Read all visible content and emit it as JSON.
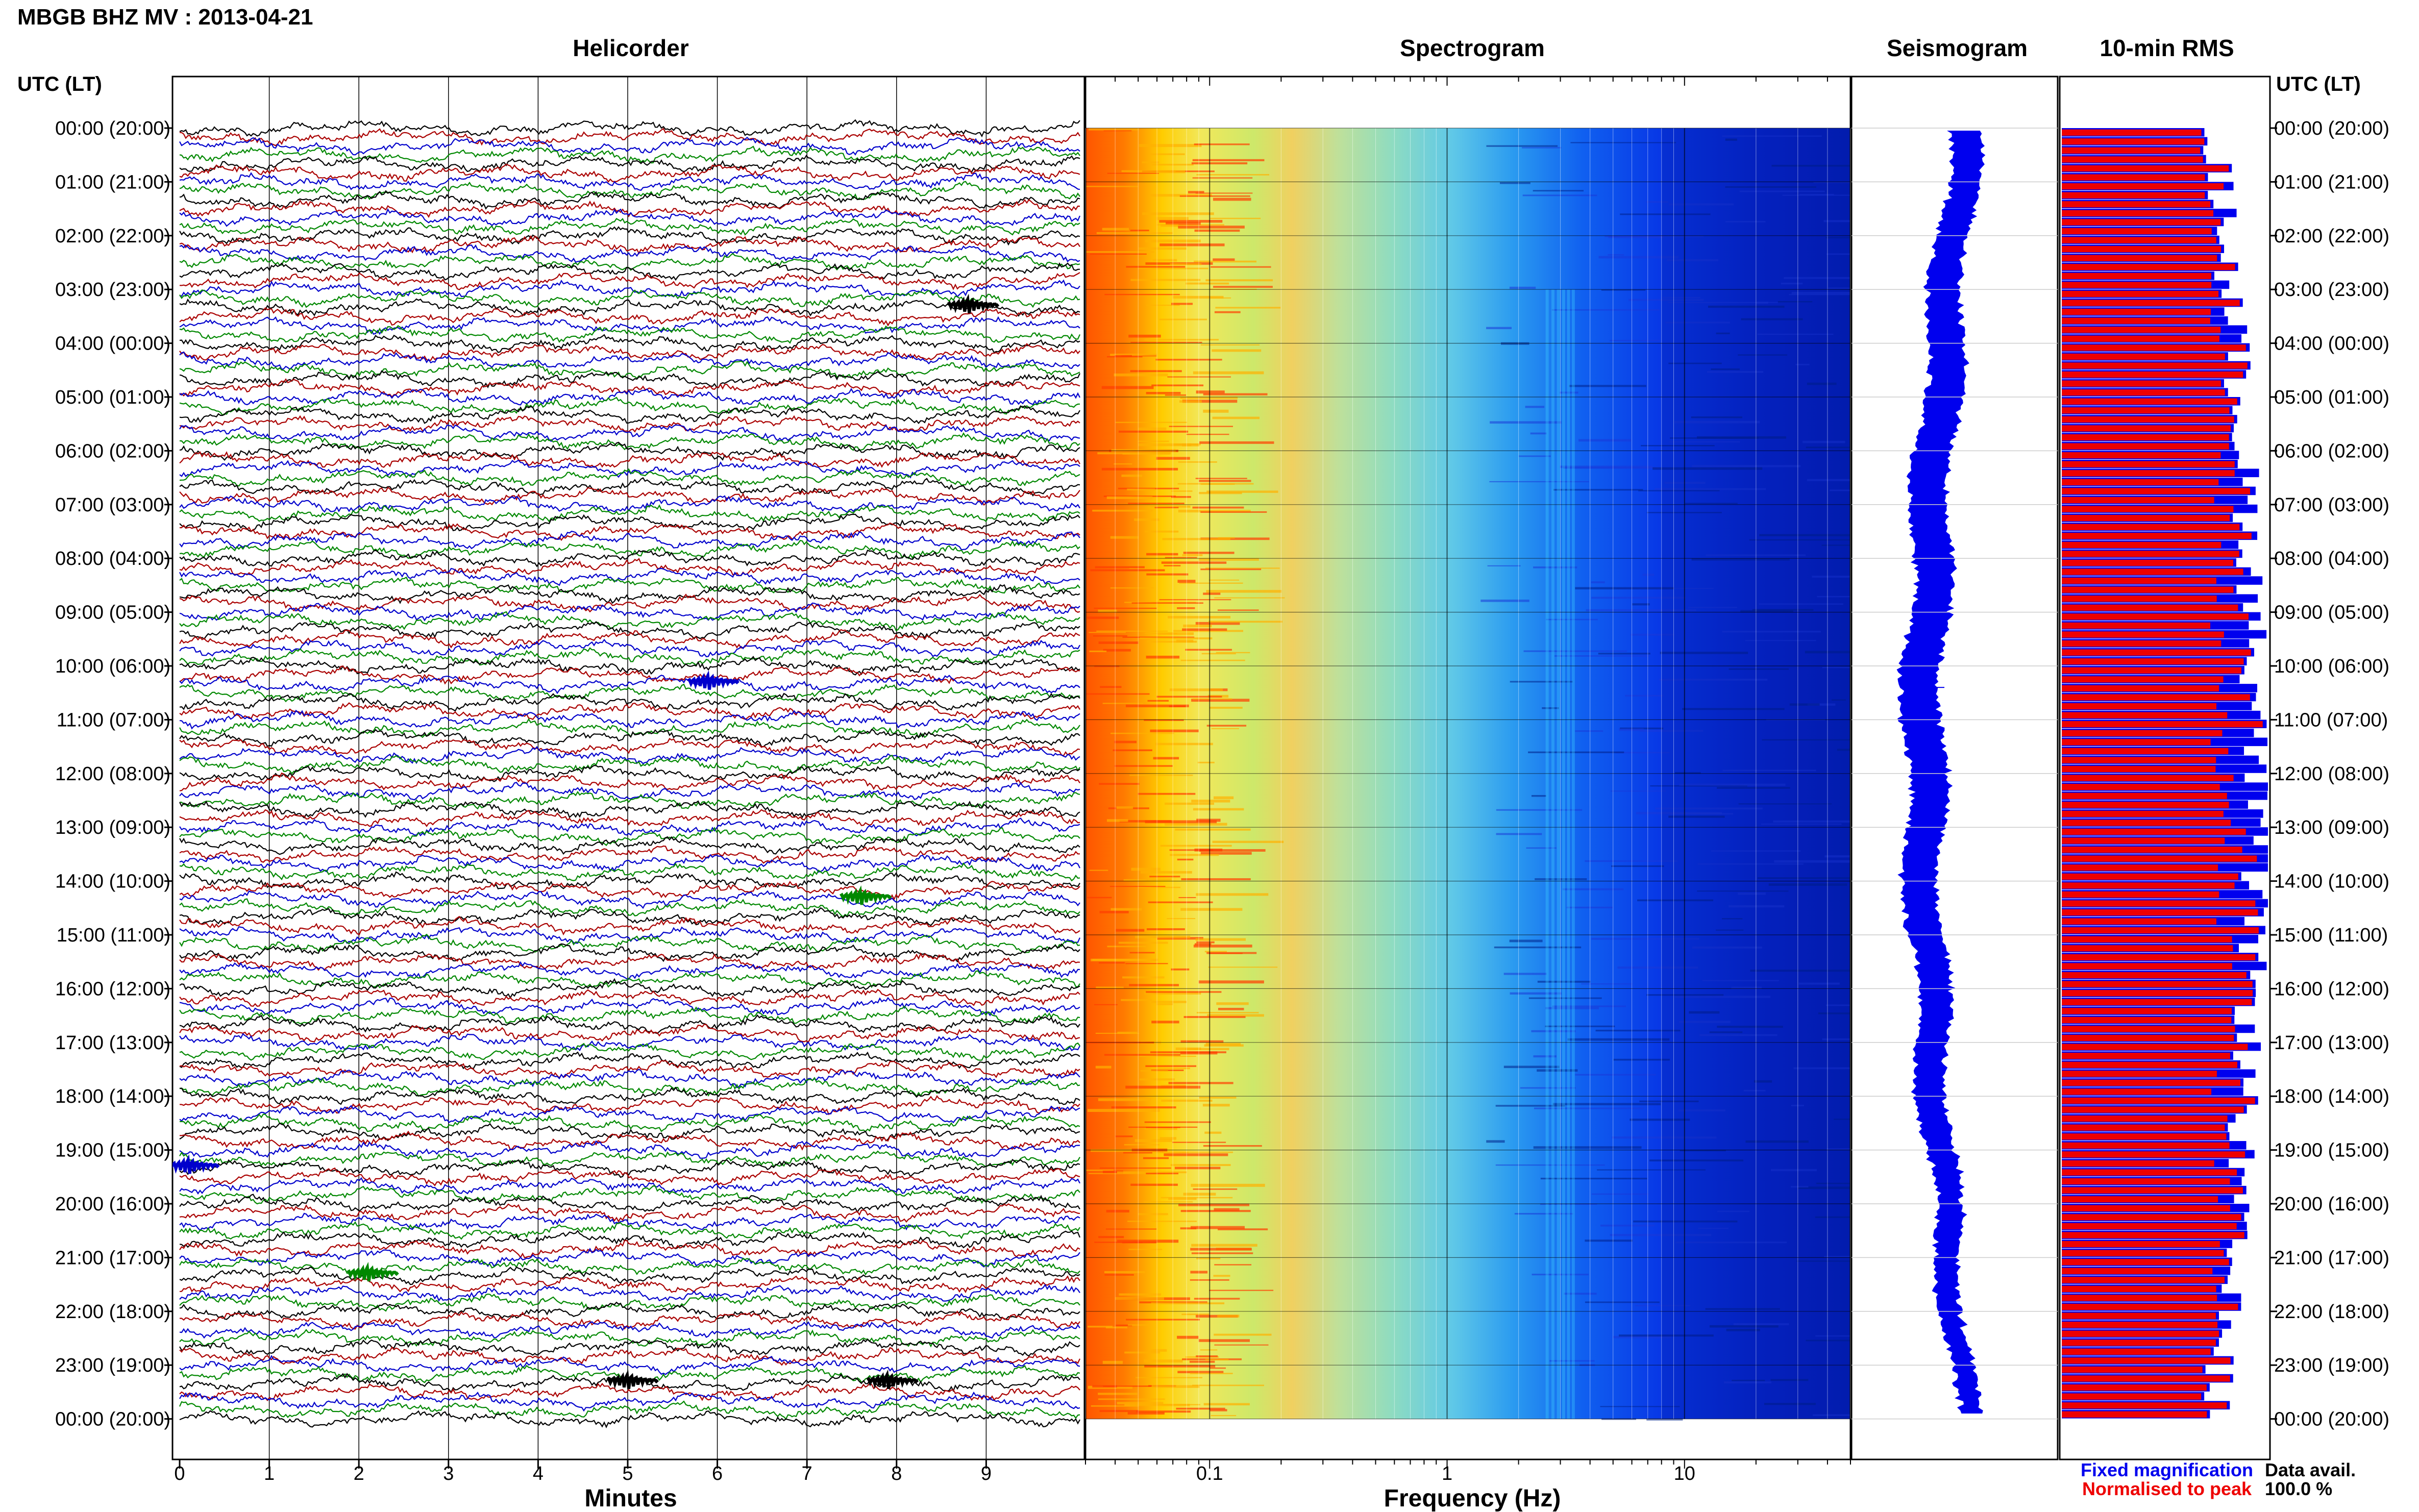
{
  "header": {
    "station_title": "MBGB BHZ MV : 2013-04-21",
    "time_axis_label": "UTC (LT)"
  },
  "panels": {
    "helicorder": "Helicorder",
    "spectrogram": "Spectrogram",
    "seismogram": "Seismogram",
    "rms": "10-min RMS"
  },
  "legend": {
    "fixed": "Fixed magnification",
    "normalised": "Normalised to peak",
    "avail_label": "Data avail.",
    "avail_value": "100.0 %",
    "fixed_color": "#0000ee",
    "normalised_color": "#ee0000"
  },
  "chart_data": [
    {
      "type": "line",
      "panel": "helicorder",
      "xlabel": "Minutes",
      "x_ticks": [
        "0",
        "1",
        "2",
        "3",
        "4",
        "5",
        "6",
        "7",
        "8",
        "9"
      ],
      "xlim": [
        0,
        10
      ],
      "trace_colors": [
        "#000000",
        "#aa0000",
        "#0000cc",
        "#008800"
      ],
      "rows_per_hour": 6,
      "events": [
        {
          "hour": 3,
          "minute": 8.8,
          "color": "#000000"
        },
        {
          "hour": 10,
          "minute": 5.9,
          "color": "#0000cc"
        },
        {
          "hour": 14,
          "minute": 7.6,
          "color": "#008800"
        },
        {
          "hour": 19,
          "minute": 0.1,
          "color": "#0000cc"
        },
        {
          "hour": 21,
          "minute": 2.1,
          "color": "#008800"
        },
        {
          "hour": 23,
          "minute": 5.0,
          "color": "#000000"
        },
        {
          "hour": 23,
          "minute": 7.9,
          "color": "#000000"
        }
      ]
    },
    {
      "type": "heatmap",
      "panel": "spectrogram",
      "xlabel": "Frequency (Hz)",
      "x_scale": "log",
      "xlim": [
        0.03,
        50
      ],
      "x_ticks": [
        "0.1",
        "1",
        "10"
      ],
      "colormap": "jet"
    },
    {
      "type": "line",
      "panel": "seismogram",
      "color": "#0000ee"
    },
    {
      "type": "bar",
      "panel": "rms",
      "orientation": "horizontal",
      "series": [
        {
          "name": "Fixed magnification",
          "color": "#0000ee"
        },
        {
          "name": "Normalised to peak",
          "color": "#ee0000"
        }
      ]
    }
  ],
  "time_labels": [
    "00:00 (20:00)",
    "01:00 (21:00)",
    "02:00 (22:00)",
    "03:00 (23:00)",
    "04:00 (00:00)",
    "05:00 (01:00)",
    "06:00 (02:00)",
    "07:00 (03:00)",
    "08:00 (04:00)",
    "09:00 (05:00)",
    "10:00 (06:00)",
    "11:00 (07:00)",
    "12:00 (08:00)",
    "13:00 (09:00)",
    "14:00 (10:00)",
    "15:00 (11:00)",
    "16:00 (12:00)",
    "17:00 (13:00)",
    "18:00 (14:00)",
    "19:00 (15:00)",
    "20:00 (16:00)",
    "21:00 (17:00)",
    "22:00 (18:00)",
    "23:00 (19:00)",
    "00:00 (20:00)"
  ]
}
